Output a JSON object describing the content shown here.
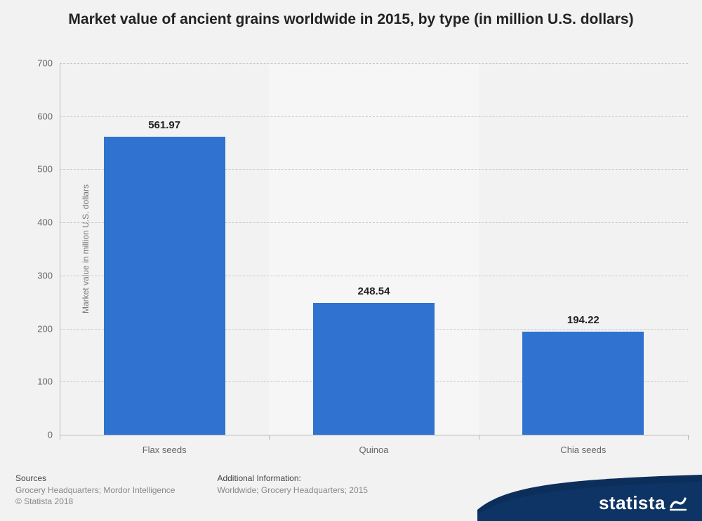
{
  "chart": {
    "type": "bar",
    "title": "Market value of ancient grains worldwide in 2015, by type (in million U.S. dollars)",
    "title_fontsize": 21,
    "title_color": "#222222",
    "y_axis_label": "Market value in million U.S. dollars",
    "label_fontsize": 12,
    "label_color": "#777777",
    "categories": [
      "Flax seeds",
      "Quinoa",
      "Chia seeds"
    ],
    "values": [
      561.97,
      248.54,
      194.22
    ],
    "value_label_fontsize": 15,
    "value_label_color": "#222222",
    "bar_color": "#2f72d0",
    "band_shade_color": "#ffffff",
    "band_shade_opacity": 0.35,
    "background_color": "#f2f2f2",
    "grid_color": "#c9c9c9",
    "axis_line_color": "#b5b9bd",
    "tick_label_color": "#666666",
    "tick_fontsize": 13,
    "ylim": [
      0,
      700
    ],
    "ytick_step": 100,
    "bar_width_ratio": 0.58
  },
  "footer": {
    "sources_heading": "Sources",
    "sources_line1": "Grocery Headquarters; Mordor Intelligence",
    "sources_line2": "© Statista 2018",
    "info_heading": "Additional Information:",
    "info_line1": "Worldwide; Grocery Headquarters; 2015",
    "heading_color": "#444444",
    "text_color": "#888888",
    "fontsize": 12
  },
  "brand": {
    "name": "statista",
    "wave_color": "#0c2e5a",
    "text_color": "#ffffff",
    "fontsize": 26
  }
}
